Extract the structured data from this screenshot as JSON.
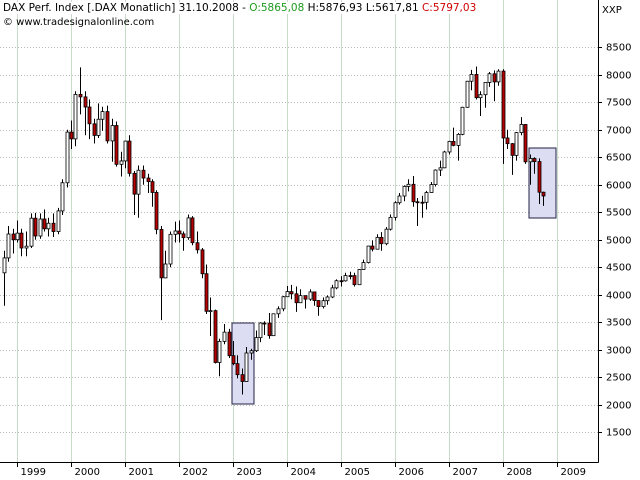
{
  "chart_data": {
    "type": "candlestick",
    "title": "DAX Perf. Index [.DAX Monatlich] 31.10.2008 -",
    "ohlc_labels": [
      "O:5865,08",
      "H:5876,93 L:5617,81",
      "C:5797,03"
    ],
    "source": "© www.tradesignalonline.com",
    "axis_label": "XXP",
    "up_color": "#ffffff",
    "down_color": "#b40000",
    "grid": true,
    "xlim": [
      1998.685,
      2009.76
    ],
    "xticks": [
      1999,
      2000,
      2001,
      2002,
      2003,
      2004,
      2005,
      2006,
      2007,
      2008,
      2009
    ],
    "ylim": [
      960,
      9360
    ],
    "yticks": [
      1500,
      2000,
      2500,
      3000,
      3500,
      4000,
      4500,
      5000,
      5500,
      6000,
      6500,
      7000,
      7500,
      8000,
      8500
    ],
    "x": [
      1998.75,
      1998.833,
      1998.917,
      1999.0,
      1999.083,
      1999.167,
      1999.25,
      1999.333,
      1999.417,
      1999.5,
      1999.583,
      1999.667,
      1999.75,
      1999.833,
      1999.917,
      2000.0,
      2000.083,
      2000.167,
      2000.25,
      2000.333,
      2000.417,
      2000.5,
      2000.583,
      2000.667,
      2000.75,
      2000.833,
      2000.917,
      2001.0,
      2001.083,
      2001.167,
      2001.25,
      2001.333,
      2001.417,
      2001.5,
      2001.583,
      2001.667,
      2001.75,
      2001.833,
      2001.917,
      2002.0,
      2002.083,
      2002.167,
      2002.25,
      2002.333,
      2002.417,
      2002.5,
      2002.583,
      2002.667,
      2002.75,
      2002.833,
      2002.917,
      2003.0,
      2003.083,
      2003.167,
      2003.25,
      2003.333,
      2003.417,
      2003.5,
      2003.583,
      2003.667,
      2003.75,
      2003.833,
      2003.917,
      2004.0,
      2004.083,
      2004.167,
      2004.25,
      2004.333,
      2004.417,
      2004.5,
      2004.583,
      2004.667,
      2004.75,
      2004.833,
      2004.917,
      2005.0,
      2005.083,
      2005.167,
      2005.25,
      2005.333,
      2005.417,
      2005.5,
      2005.583,
      2005.667,
      2005.75,
      2005.833,
      2005.917,
      2006.0,
      2006.083,
      2006.167,
      2006.25,
      2006.333,
      2006.417,
      2006.5,
      2006.583,
      2006.667,
      2006.75,
      2006.833,
      2006.917,
      2007.0,
      2007.083,
      2007.167,
      2007.25,
      2007.333,
      2007.417,
      2007.5,
      2007.583,
      2007.667,
      2007.75,
      2007.833,
      2007.917,
      2008.0,
      2008.083,
      2008.167,
      2008.25,
      2008.333,
      2008.417,
      2008.5,
      2008.583,
      2008.667,
      2008.75
    ],
    "open": [
      4400,
      4671,
      5105,
      5002,
      5121,
      4851,
      4884,
      5393,
      5069,
      5378,
      5200,
      5301,
      5150,
      5525,
      6037,
      6958,
      6835,
      7644,
      7599,
      7414,
      7109,
      6898,
      7192,
      7331,
      6798,
      7078,
      6372,
      6434,
      6795,
      6208,
      5830,
      6265,
      6123,
      6058,
      5861,
      5188,
      4308,
      4560,
      5100,
      5160,
      5108,
      5039,
      5398,
      4947,
      4818,
      4383,
      3700,
      3712,
      2769,
      3153,
      3321,
      2893,
      2748,
      2548,
      2424,
      2942,
      2983,
      3221,
      3487,
      3485,
      3257,
      3655,
      3745,
      3965,
      4058,
      4018,
      3856,
      3985,
      3921,
      4052,
      3895,
      3785,
      3893,
      3960,
      4126,
      4256,
      4254,
      4350,
      4349,
      4184,
      4460,
      4586,
      4886,
      4829,
      5044,
      4929,
      5193,
      5408,
      5674,
      5796,
      5970,
      6009,
      5692,
      5683,
      5682,
      5859,
      6004,
      6268,
      6309,
      6597,
      6789,
      6716,
      6917,
      7409,
      7883,
      8007,
      7584,
      7638,
      7862,
      8019,
      7871,
      8067,
      6851,
      6748,
      6535,
      6949,
      7097,
      6418,
      6479,
      6422,
      5865.08
    ],
    "high": [
      4800,
      5250,
      5200,
      5350,
      5200,
      5150,
      5480,
      5490,
      5480,
      5550,
      5400,
      5480,
      5580,
      6100,
      7000,
      7170,
      7700,
      8136,
      7700,
      7550,
      7200,
      7480,
      7420,
      7440,
      7200,
      7150,
      6600,
      6800,
      6900,
      6250,
      6350,
      6350,
      6200,
      6100,
      5900,
      5250,
      4800,
      5150,
      5330,
      5350,
      5150,
      5460,
      5430,
      5150,
      4850,
      4550,
      3950,
      3730,
      3200,
      3470,
      3380,
      3160,
      2900,
      2660,
      3050,
      3020,
      3350,
      3500,
      3520,
      3670,
      3660,
      3790,
      3980,
      4160,
      4180,
      4150,
      4100,
      3990,
      4100,
      4060,
      3900,
      3950,
      3990,
      4180,
      4280,
      4340,
      4400,
      4420,
      4400,
      4470,
      4640,
      4890,
      4990,
      5100,
      5140,
      5230,
      5460,
      5700,
      5850,
      5990,
      6100,
      6160,
      5760,
      5800,
      5890,
      6050,
      6280,
      6440,
      6620,
      6800,
      7040,
      6940,
      7420,
      7890,
      8090,
      8150,
      7700,
      7870,
      8050,
      8080,
      8100,
      8100,
      7000,
      6760,
      6960,
      7230,
      7100,
      6550,
      6500,
      6480,
      5876.93
    ],
    "low": [
      3800,
      4600,
      4750,
      4950,
      4700,
      4700,
      4850,
      5000,
      5020,
      5150,
      5060,
      5050,
      5100,
      5450,
      5950,
      6650,
      6700,
      7280,
      6900,
      6830,
      6750,
      6850,
      6980,
      6750,
      6420,
      6330,
      6150,
      6300,
      6150,
      5450,
      5400,
      6000,
      5850,
      5600,
      5100,
      3540,
      4300,
      4500,
      4950,
      4950,
      4800,
      5000,
      4900,
      4750,
      4300,
      3650,
      3250,
      2750,
      2520,
      3100,
      2850,
      2720,
      2480,
      2188,
      2420,
      2820,
      2960,
      3140,
      3270,
      3200,
      3250,
      3580,
      3700,
      3960,
      3920,
      3690,
      3850,
      3750,
      3890,
      3800,
      3620,
      3750,
      3820,
      3940,
      4100,
      4150,
      4240,
      4280,
      4150,
      4180,
      4450,
      4570,
      4790,
      4830,
      4800,
      4900,
      5170,
      5350,
      5640,
      5700,
      5880,
      5600,
      5250,
      5400,
      5550,
      5850,
      5970,
      6160,
      6300,
      6550,
      6700,
      6440,
      6900,
      7400,
      7720,
      7550,
      7250,
      7400,
      7780,
      7520,
      7800,
      6380,
      6650,
      6180,
      6440,
      6900,
      6380,
      6000,
      6200,
      5650,
      5617.81
    ],
    "close": [
      4671,
      5105,
      5002,
      5121,
      4851,
      4884,
      5393,
      5069,
      5378,
      5200,
      5301,
      5150,
      5525,
      6037,
      6958,
      6835,
      7644,
      7599,
      7414,
      7109,
      6898,
      7192,
      7331,
      6798,
      7078,
      6372,
      6434,
      6795,
      6208,
      5830,
      6265,
      6123,
      6058,
      5861,
      5188,
      4308,
      4560,
      5100,
      5160,
      5108,
      5039,
      5398,
      4947,
      4818,
      4383,
      3700,
      3712,
      2769,
      3153,
      3321,
      2893,
      2748,
      2548,
      2424,
      2942,
      2983,
      3221,
      3487,
      3485,
      3257,
      3655,
      3745,
      3965,
      4058,
      4018,
      3856,
      3985,
      3921,
      4052,
      3895,
      3785,
      3893,
      3960,
      4126,
      4256,
      4254,
      4350,
      4349,
      4184,
      4460,
      4586,
      4886,
      4829,
      5044,
      4929,
      5193,
      5408,
      5674,
      5796,
      5970,
      6009,
      5692,
      5683,
      5682,
      5859,
      6004,
      6268,
      6309,
      6597,
      6789,
      6716,
      6917,
      7409,
      7883,
      8007,
      7584,
      7638,
      7862,
      8019,
      7871,
      8067,
      6851,
      6748,
      6535,
      6949,
      7097,
      6418,
      6479,
      6422,
      5865,
      5797.03
    ]
  }
}
